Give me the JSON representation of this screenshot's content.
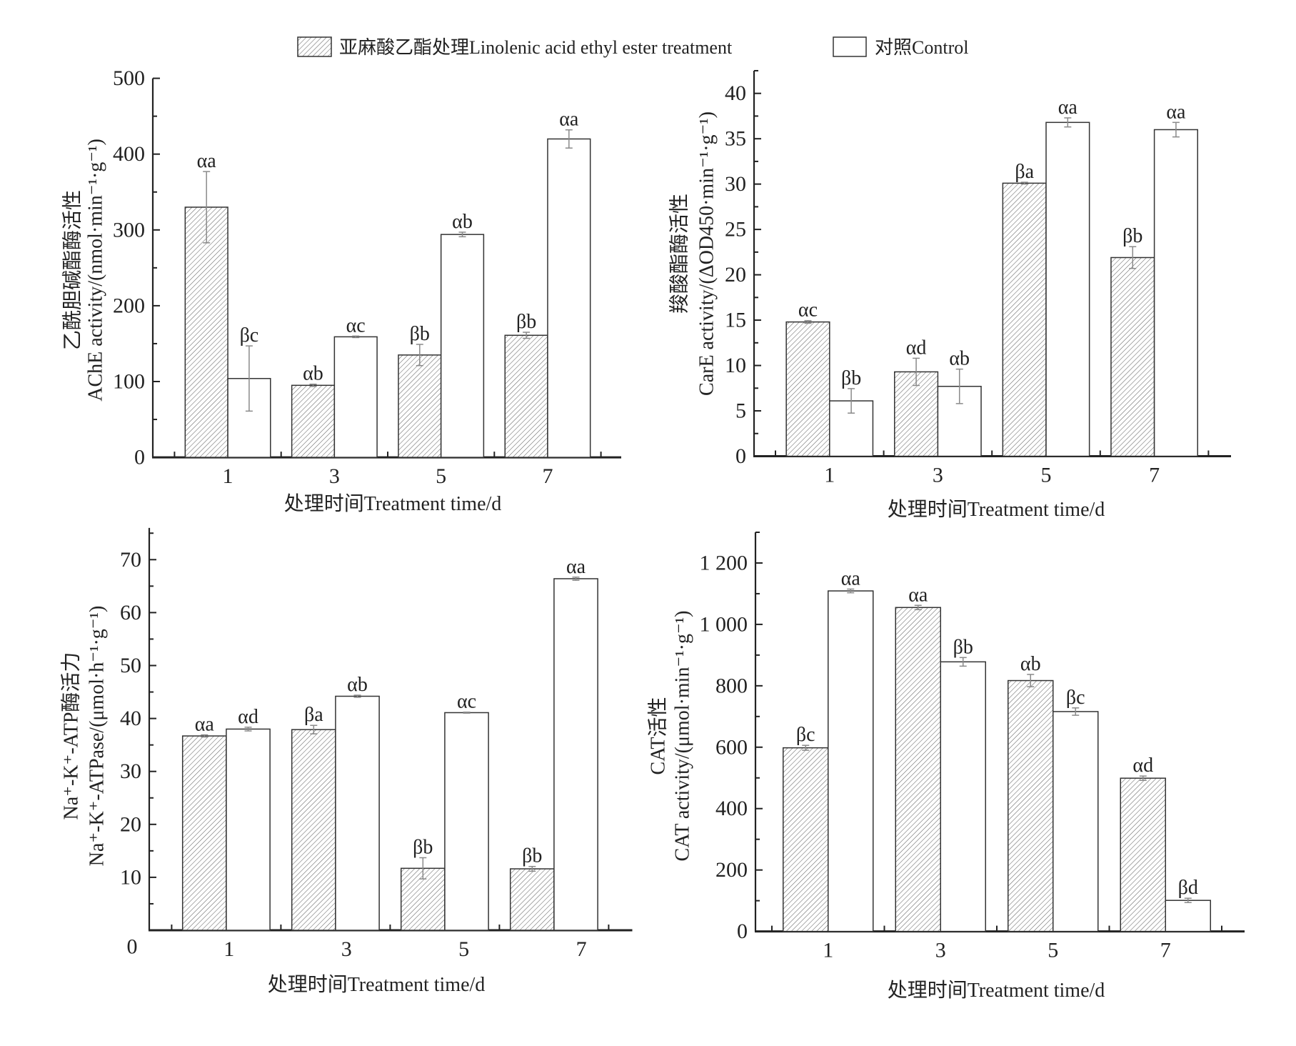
{
  "legend": {
    "treatment_label": "亚麻酸乙酯处理Linolenic acid ethyl ester treatment",
    "control_label": "对照Control"
  },
  "chart_data": [
    {
      "id": "ache",
      "type": "bar",
      "title": "",
      "ylabel_cn": "乙酰胆碱酯酶活性",
      "ylabel": "AChE activity/(nmol·min⁻¹·g⁻¹)",
      "xlabel": "处理时间Treatment time/d",
      "categories": [
        "1",
        "3",
        "5",
        "7"
      ],
      "ylim": [
        0,
        500
      ],
      "yticks": [
        0,
        100,
        200,
        300,
        400,
        500
      ],
      "ytick_labels": [
        "0",
        "100",
        "200",
        "300",
        "400",
        "500"
      ],
      "minor_tick_step": 50,
      "legend_position": "top-center",
      "series": [
        {
          "name": "亚麻酸乙酯处理Linolenic acid ethyl ester treatment",
          "pattern": "hatched",
          "values": [
            330,
            95,
            135,
            161
          ],
          "errors": [
            47,
            1.5,
            14,
            4
          ],
          "labels": [
            "αa",
            "αb",
            "βb",
            "βb"
          ]
        },
        {
          "name": "对照Control",
          "pattern": "empty",
          "values": [
            104,
            159,
            294,
            420
          ],
          "errors": [
            43,
            1,
            3,
            12
          ],
          "labels": [
            "βc",
            "αc",
            "αb",
            "αa"
          ]
        }
      ]
    },
    {
      "id": "care",
      "type": "bar",
      "title": "",
      "ylabel_cn": "羧酸酯酶活性",
      "ylabel": "CarE activity/(ΔOD450·min⁻¹·g⁻¹)",
      "xlabel": "处理时间Treatment time/d",
      "categories": [
        "1",
        "3",
        "5",
        "7"
      ],
      "ylim": [
        0,
        42.5
      ],
      "yticks": [
        0,
        5,
        10,
        15,
        20,
        25,
        30,
        35,
        40
      ],
      "ytick_labels": [
        "0",
        "5",
        "10",
        "15",
        "20",
        "25",
        "30",
        "35",
        "40"
      ],
      "minor_tick_step": 2.5,
      "legend_position": "top-center",
      "series": [
        {
          "name": "亚麻酸乙酯处理Linolenic acid ethyl ester treatment",
          "pattern": "hatched",
          "values": [
            14.8,
            9.3,
            30.1,
            21.9
          ],
          "errors": [
            0.15,
            1.5,
            0.1,
            1.2
          ],
          "labels": [
            "αc",
            "αd",
            "βa",
            "βb"
          ]
        },
        {
          "name": "对照Control",
          "pattern": "empty",
          "values": [
            6.1,
            7.7,
            36.8,
            36.0
          ],
          "errors": [
            1.35,
            1.9,
            0.5,
            0.8
          ],
          "labels": [
            "βb",
            "αb",
            "αa",
            "αa"
          ]
        }
      ]
    },
    {
      "id": "atpase",
      "type": "bar",
      "title": "",
      "ylabel_cn": "Na⁺-K⁺-ATP酶活力",
      "ylabel": "Na⁺-K⁺-ATPase/(μmol·h⁻¹·g⁻¹)",
      "xlabel": "处理时间Treatment time/d",
      "categories": [
        "1",
        "3",
        "5",
        "7"
      ],
      "ylim": [
        0,
        76
      ],
      "yticks": [
        0,
        10,
        20,
        30,
        40,
        50,
        60,
        70
      ],
      "ytick_labels": [
        "0",
        "10",
        "20",
        "30",
        "40",
        "50",
        "60",
        "70"
      ],
      "minor_tick_step": 5,
      "legend_position": "top-center",
      "series": [
        {
          "name": "亚麻酸乙酯处理Linolenic acid ethyl ester treatment",
          "pattern": "hatched",
          "values": [
            36.7,
            37.9,
            11.7,
            11.6
          ],
          "errors": [
            0.2,
            0.8,
            2.0,
            0.45
          ],
          "labels": [
            "αa",
            "βa",
            "βb",
            "βb"
          ]
        },
        {
          "name": "对照Control",
          "pattern": "empty",
          "values": [
            38.0,
            44.2,
            41.1,
            66.4
          ],
          "errors": [
            0.35,
            0.2,
            0.1,
            0.3
          ],
          "labels": [
            "αd",
            "αb",
            "αc",
            "αa"
          ]
        }
      ]
    },
    {
      "id": "cat",
      "type": "bar",
      "title": "",
      "ylabel_cn": "CAT活性",
      "ylabel": "CAT activity/(μmol·min⁻¹·g⁻¹)",
      "xlabel": "处理时间Treatment time/d",
      "categories": [
        "1",
        "3",
        "5",
        "7"
      ],
      "ylim": [
        0,
        1300
      ],
      "yticks": [
        0,
        200,
        400,
        600,
        800,
        1000,
        1200
      ],
      "ytick_labels": [
        "0",
        "200",
        "400",
        "600",
        "800",
        "1 000",
        "1 200"
      ],
      "minor_tick_step": 100,
      "legend_position": "top-center",
      "series": [
        {
          "name": "亚麻酸乙酯处理Linolenic acid ethyl ester treatment",
          "pattern": "hatched",
          "values": [
            598,
            1055,
            817,
            499
          ],
          "errors": [
            8,
            7,
            20,
            7
          ],
          "labels": [
            "βc",
            "αa",
            "αb",
            "αd"
          ]
        },
        {
          "name": "对照Control",
          "pattern": "empty",
          "values": [
            1109,
            878,
            716,
            101
          ],
          "errors": [
            6,
            14,
            12,
            7
          ],
          "labels": [
            "αa",
            "βb",
            "βc",
            "βd"
          ]
        }
      ]
    }
  ],
  "colors": {
    "bar_outline": "#333333",
    "hatch": "#666666",
    "error_bar": "#8a8a8a",
    "axis": "#222222",
    "background": "#ffffff"
  }
}
